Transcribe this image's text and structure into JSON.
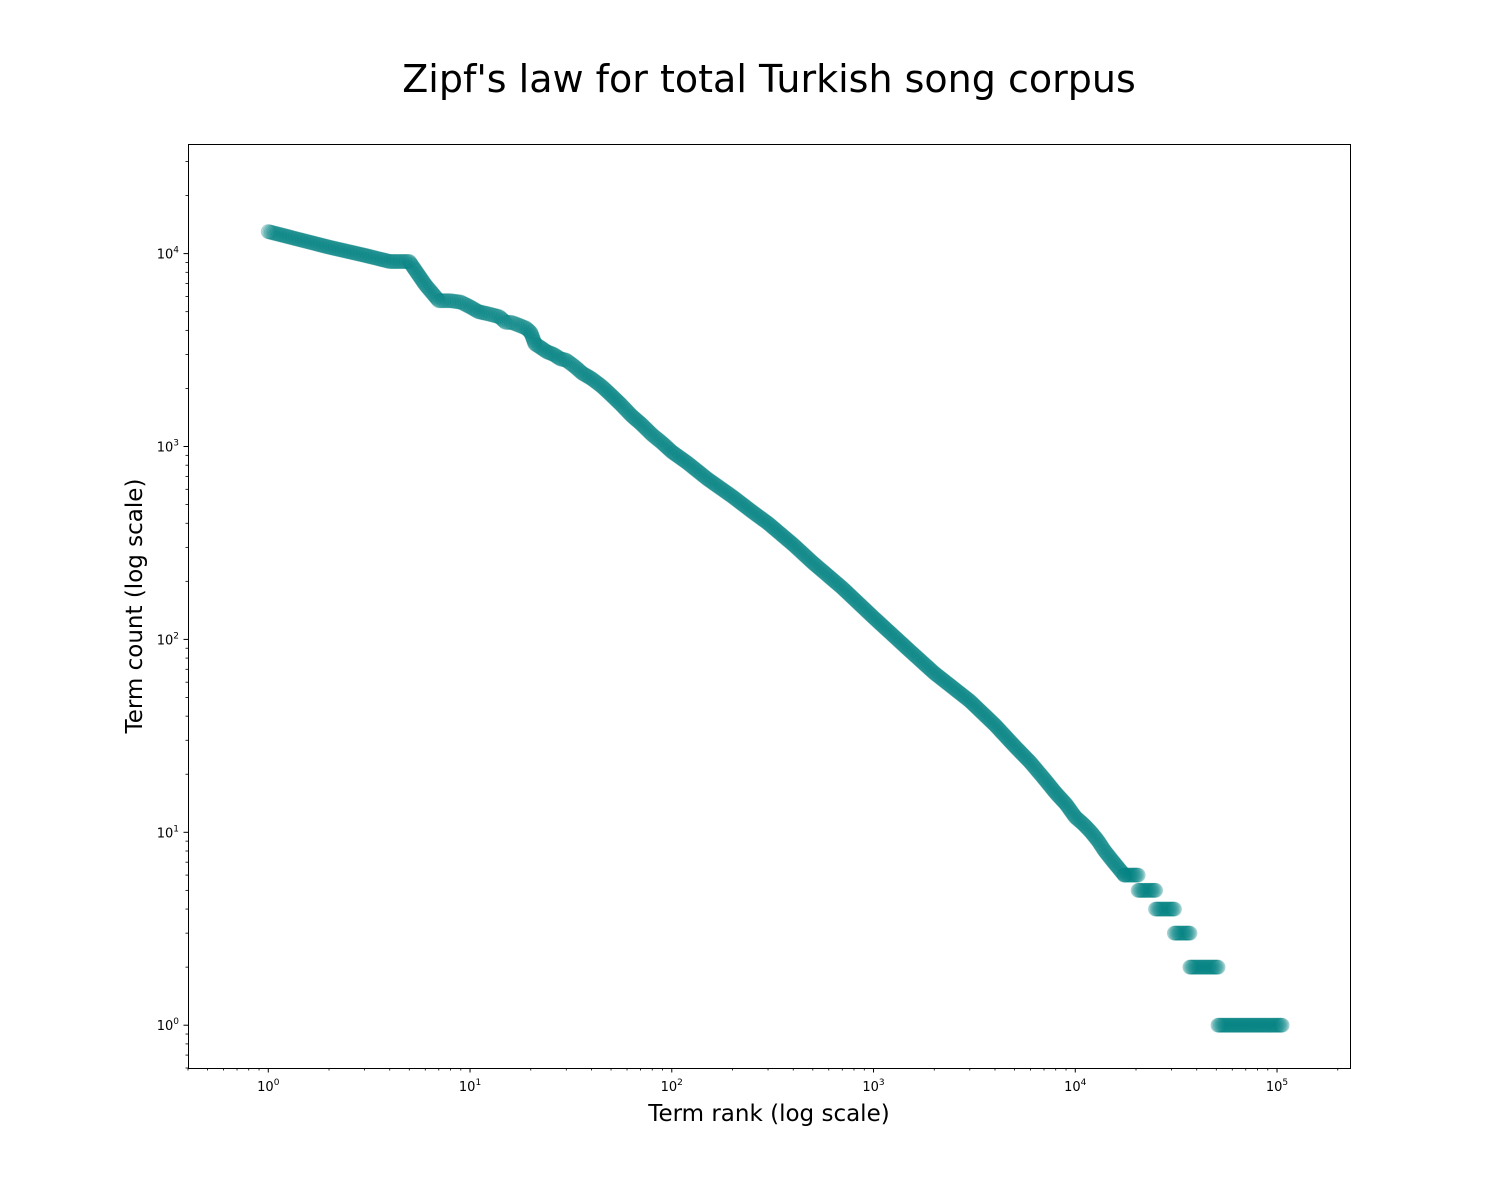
{
  "chart_data": {
    "type": "scatter",
    "title": "Zipf's law for total Turkish song corpus",
    "xlabel": "Term rank (log scale)",
    "ylabel": "Term count (log scale)",
    "xscale": "log",
    "yscale": "log",
    "xlim": [
      0.4,
      230000
    ],
    "ylim": [
      0.6,
      37000
    ],
    "grid": false,
    "color": "#008080",
    "point_alpha": 0.2,
    "x_ticks": [
      {
        "base": "10",
        "exp": "0",
        "value": 1
      },
      {
        "base": "10",
        "exp": "1",
        "value": 10
      },
      {
        "base": "10",
        "exp": "2",
        "value": 100
      },
      {
        "base": "10",
        "exp": "3",
        "value": 1000
      },
      {
        "base": "10",
        "exp": "4",
        "value": 10000
      },
      {
        "base": "10",
        "exp": "5",
        "value": 100000
      }
    ],
    "y_ticks": [
      {
        "base": "10",
        "exp": "0",
        "value": 1
      },
      {
        "base": "10",
        "exp": "1",
        "value": 10
      },
      {
        "base": "10",
        "exp": "2",
        "value": 100
      },
      {
        "base": "10",
        "exp": "3",
        "value": 1000
      },
      {
        "base": "10",
        "exp": "4",
        "value": 10000
      }
    ],
    "points": [
      [
        1,
        13000
      ],
      [
        2,
        10800
      ],
      [
        3,
        9800
      ],
      [
        4,
        9100
      ],
      [
        5,
        9100
      ],
      [
        6,
        6900
      ],
      [
        7,
        5700
      ],
      [
        8,
        5700
      ],
      [
        9,
        5600
      ],
      [
        10,
        5300
      ],
      [
        11,
        5000
      ],
      [
        12,
        4900
      ],
      [
        13,
        4800
      ],
      [
        14,
        4700
      ],
      [
        15,
        4400
      ],
      [
        16,
        4400
      ],
      [
        17,
        4300
      ],
      [
        18,
        4200
      ],
      [
        19,
        4100
      ],
      [
        20,
        3900
      ],
      [
        21,
        3400
      ],
      [
        22,
        3300
      ],
      [
        24,
        3100
      ],
      [
        26,
        3000
      ],
      [
        28,
        2850
      ],
      [
        30,
        2800
      ],
      [
        33,
        2600
      ],
      [
        36,
        2400
      ],
      [
        40,
        2250
      ],
      [
        45,
        2050
      ],
      [
        50,
        1850
      ],
      [
        56,
        1650
      ],
      [
        63,
        1450
      ],
      [
        71,
        1300
      ],
      [
        80,
        1150
      ],
      [
        90,
        1040
      ],
      [
        100,
        940
      ],
      [
        120,
        820
      ],
      [
        150,
        680
      ],
      [
        200,
        550
      ],
      [
        250,
        460
      ],
      [
        300,
        400
      ],
      [
        400,
        310
      ],
      [
        500,
        250
      ],
      [
        700,
        185
      ],
      [
        1000,
        130
      ],
      [
        1500,
        88
      ],
      [
        2000,
        67
      ],
      [
        3000,
        48
      ],
      [
        4000,
        36
      ],
      [
        5000,
        28
      ],
      [
        6000,
        23
      ],
      [
        7000,
        19
      ],
      [
        8000,
        16
      ],
      [
        9000,
        14
      ],
      [
        10000,
        12
      ],
      [
        11000,
        11
      ],
      [
        12000,
        10
      ],
      [
        13000,
        9
      ],
      [
        14000,
        8
      ],
      [
        15500,
        7
      ],
      [
        17500,
        6
      ]
    ],
    "plateaus": [
      {
        "value": 6,
        "x_range": [
          17500,
          20500
        ]
      },
      {
        "value": 5,
        "x_range": [
          20500,
          25000
        ]
      },
      {
        "value": 4,
        "x_range": [
          25000,
          31000
        ]
      },
      {
        "value": 3,
        "x_range": [
          31000,
          37000
        ]
      },
      {
        "value": 2,
        "x_range": [
          37000,
          51000
        ]
      },
      {
        "value": 1,
        "x_range": [
          51000,
          106000
        ]
      }
    ]
  }
}
